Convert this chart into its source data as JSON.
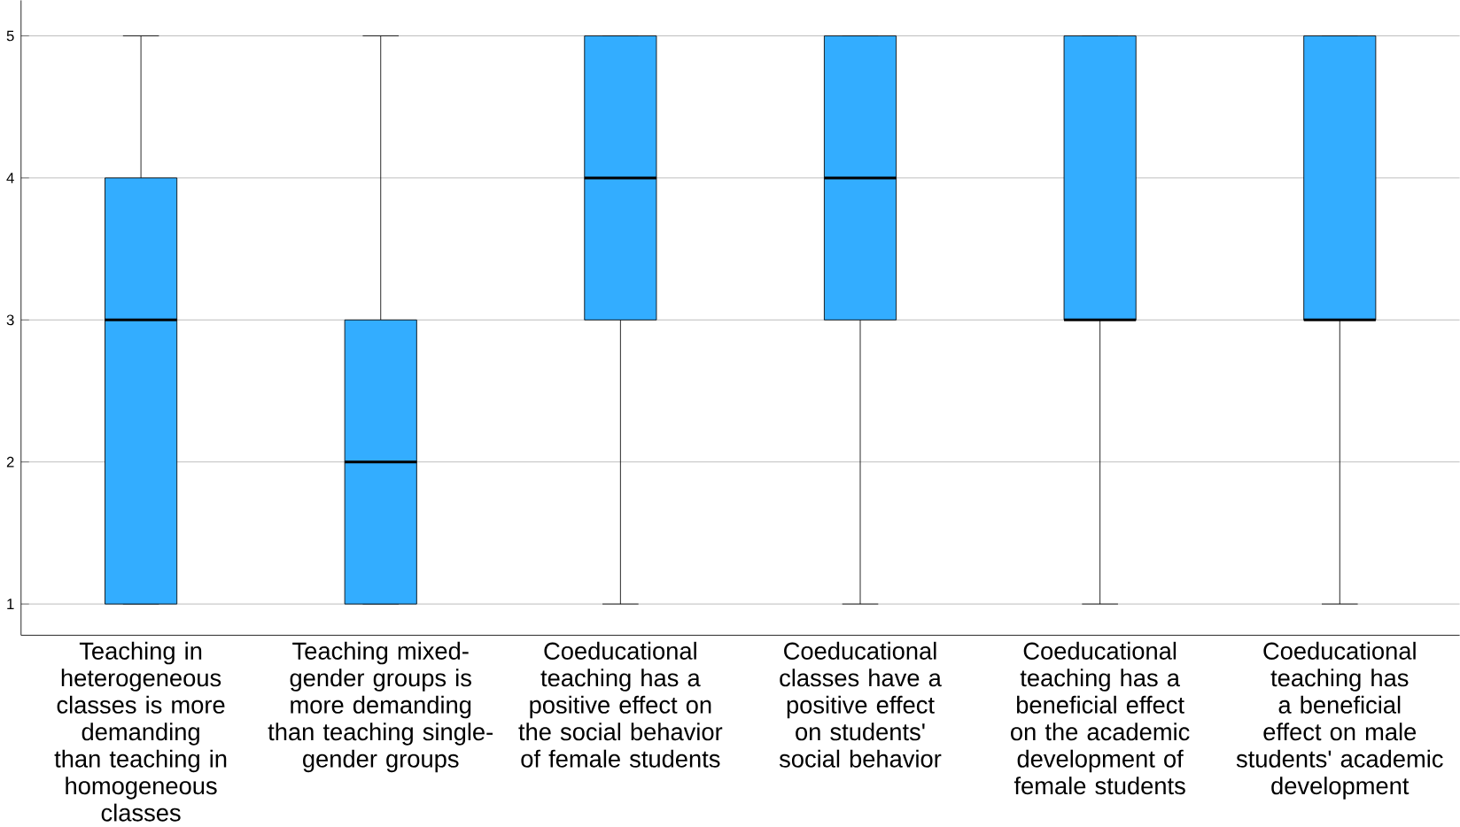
{
  "chart_data": {
    "type": "box",
    "categories": [
      "Teaching in heterogeneous classes is more demanding than teaching in homogeneous classes",
      "Teaching mixed-gender groups is more demanding than teaching single-gender groups",
      "Coeducational teaching has a positive effect on the social behavior of female students",
      "Coeducational classes have a positive effect on students' social behavior",
      "Coeducational teaching has a beneficial effect on the academic development of female students",
      "Coeducational teaching has a beneficial effect on male students' academic development"
    ],
    "color": "#33adff",
    "boxes": [
      {
        "low": 1,
        "q1": 1,
        "median": 3,
        "q3": 4,
        "high": 5
      },
      {
        "low": 1,
        "q1": 1,
        "median": 2,
        "q3": 3,
        "high": 5
      },
      {
        "low": 1,
        "q1": 3,
        "median": 4,
        "q3": 5,
        "high": 5
      },
      {
        "low": 1,
        "q1": 3,
        "median": 4,
        "q3": 5,
        "high": 5
      },
      {
        "low": 1,
        "q1": 3,
        "median": 3,
        "q3": 5,
        "high": 5
      },
      {
        "low": 1,
        "q1": 3,
        "median": 3,
        "q3": 5,
        "high": 5
      }
    ],
    "ylim": [
      0.78,
      5.25
    ],
    "yticks": [
      1,
      2,
      3,
      4,
      5
    ],
    "grid": "y"
  }
}
